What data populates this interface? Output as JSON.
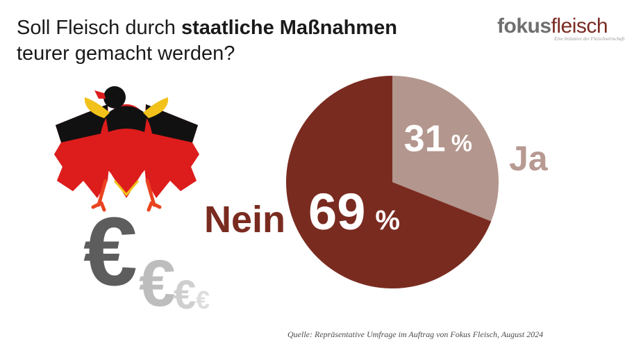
{
  "header": {
    "title_prefix": "Soll Fleisch durch ",
    "title_bold": "staatliche Maßnahmen",
    "title_line2": "teurer gemacht werden?"
  },
  "logo": {
    "part1": "fokus",
    "part2": "fleisch",
    "tagline": "Eine Initiative der Fleischwirtschaft"
  },
  "source": "Quelle: Repräsentative Umfrage im Auftrag von Fokus Fleisch, August 2024",
  "colors": {
    "nein": "#7a2b20",
    "ja": "#b3968d",
    "label_ja": "#b89a92",
    "label_nein": "#7a2b20"
  },
  "chart_data": {
    "type": "pie",
    "slices": [
      {
        "label": "Ja",
        "value": 31,
        "value_label": "31",
        "unit": "%"
      },
      {
        "label": "Nein",
        "value": 69,
        "value_label": "69",
        "unit": "%"
      }
    ]
  }
}
